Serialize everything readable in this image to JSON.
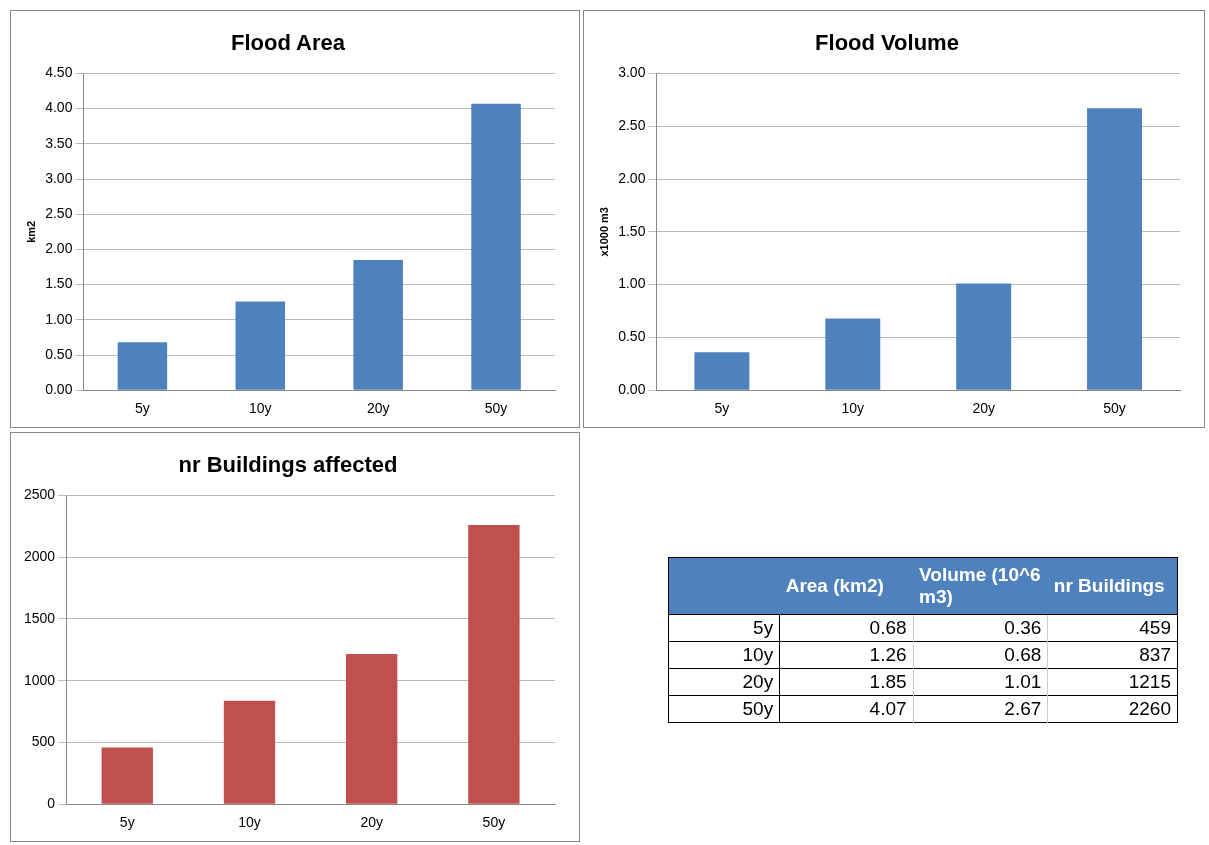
{
  "chart_data": [
    {
      "type": "bar",
      "title": "Flood Area",
      "ylabel": "km2",
      "categories": [
        "5y",
        "10y",
        "20y",
        "50y"
      ],
      "values": [
        0.68,
        1.26,
        1.85,
        4.07
      ],
      "color": "#4f81bd",
      "ylim": [
        0,
        4.5
      ],
      "yticks": [
        {
          "value": 0,
          "label": "0.00"
        },
        {
          "value": 0.5,
          "label": "0.50"
        },
        {
          "value": 1,
          "label": "1.00"
        },
        {
          "value": 1.5,
          "label": "1.50"
        },
        {
          "value": 2,
          "label": "2.00"
        },
        {
          "value": 2.5,
          "label": "2.50"
        },
        {
          "value": 3,
          "label": "3.00"
        },
        {
          "value": 3.5,
          "label": "3.50"
        },
        {
          "value": 4,
          "label": "4.00"
        },
        {
          "value": 4.5,
          "label": "4.50"
        }
      ],
      "grid": "y"
    },
    {
      "type": "bar",
      "title": "Flood Volume",
      "ylabel": "x1000 m3",
      "categories": [
        "5y",
        "10y",
        "20y",
        "50y"
      ],
      "values": [
        0.36,
        0.68,
        1.01,
        2.67
      ],
      "color": "#4f81bd",
      "ylim": [
        0,
        3
      ],
      "yticks": [
        {
          "value": 0,
          "label": "0.00"
        },
        {
          "value": 0.5,
          "label": "0.50"
        },
        {
          "value": 1,
          "label": "1.00"
        },
        {
          "value": 1.5,
          "label": "1.50"
        },
        {
          "value": 2,
          "label": "2.00"
        },
        {
          "value": 2.5,
          "label": "2.50"
        },
        {
          "value": 3,
          "label": "3.00"
        }
      ],
      "grid": "y"
    },
    {
      "type": "bar",
      "title": "nr Buildings affected",
      "categories": [
        "5y",
        "10y",
        "20y",
        "50y"
      ],
      "values": [
        459,
        837,
        1215,
        2260
      ],
      "color": "#c0504d",
      "ylim": [
        0,
        2500
      ],
      "yticks": [
        0,
        500,
        1000,
        1500,
        2000,
        2500
      ],
      "grid": "y"
    },
    {
      "type": "other",
      "categories": [
        "5y",
        "10y",
        "20y",
        "50y"
      ],
      "series": [
        {
          "name": "Area (km2)",
          "values": [
            0.68,
            1.26,
            1.85,
            4.07
          ]
        },
        {
          "name": "Volume (10^6 m3)",
          "values": [
            0.36,
            0.68,
            1.01,
            2.67
          ]
        },
        {
          "name": "nr Buildings",
          "values": [
            459,
            837,
            1215,
            2260
          ]
        }
      ],
      "data_labels": true
    }
  ]
}
